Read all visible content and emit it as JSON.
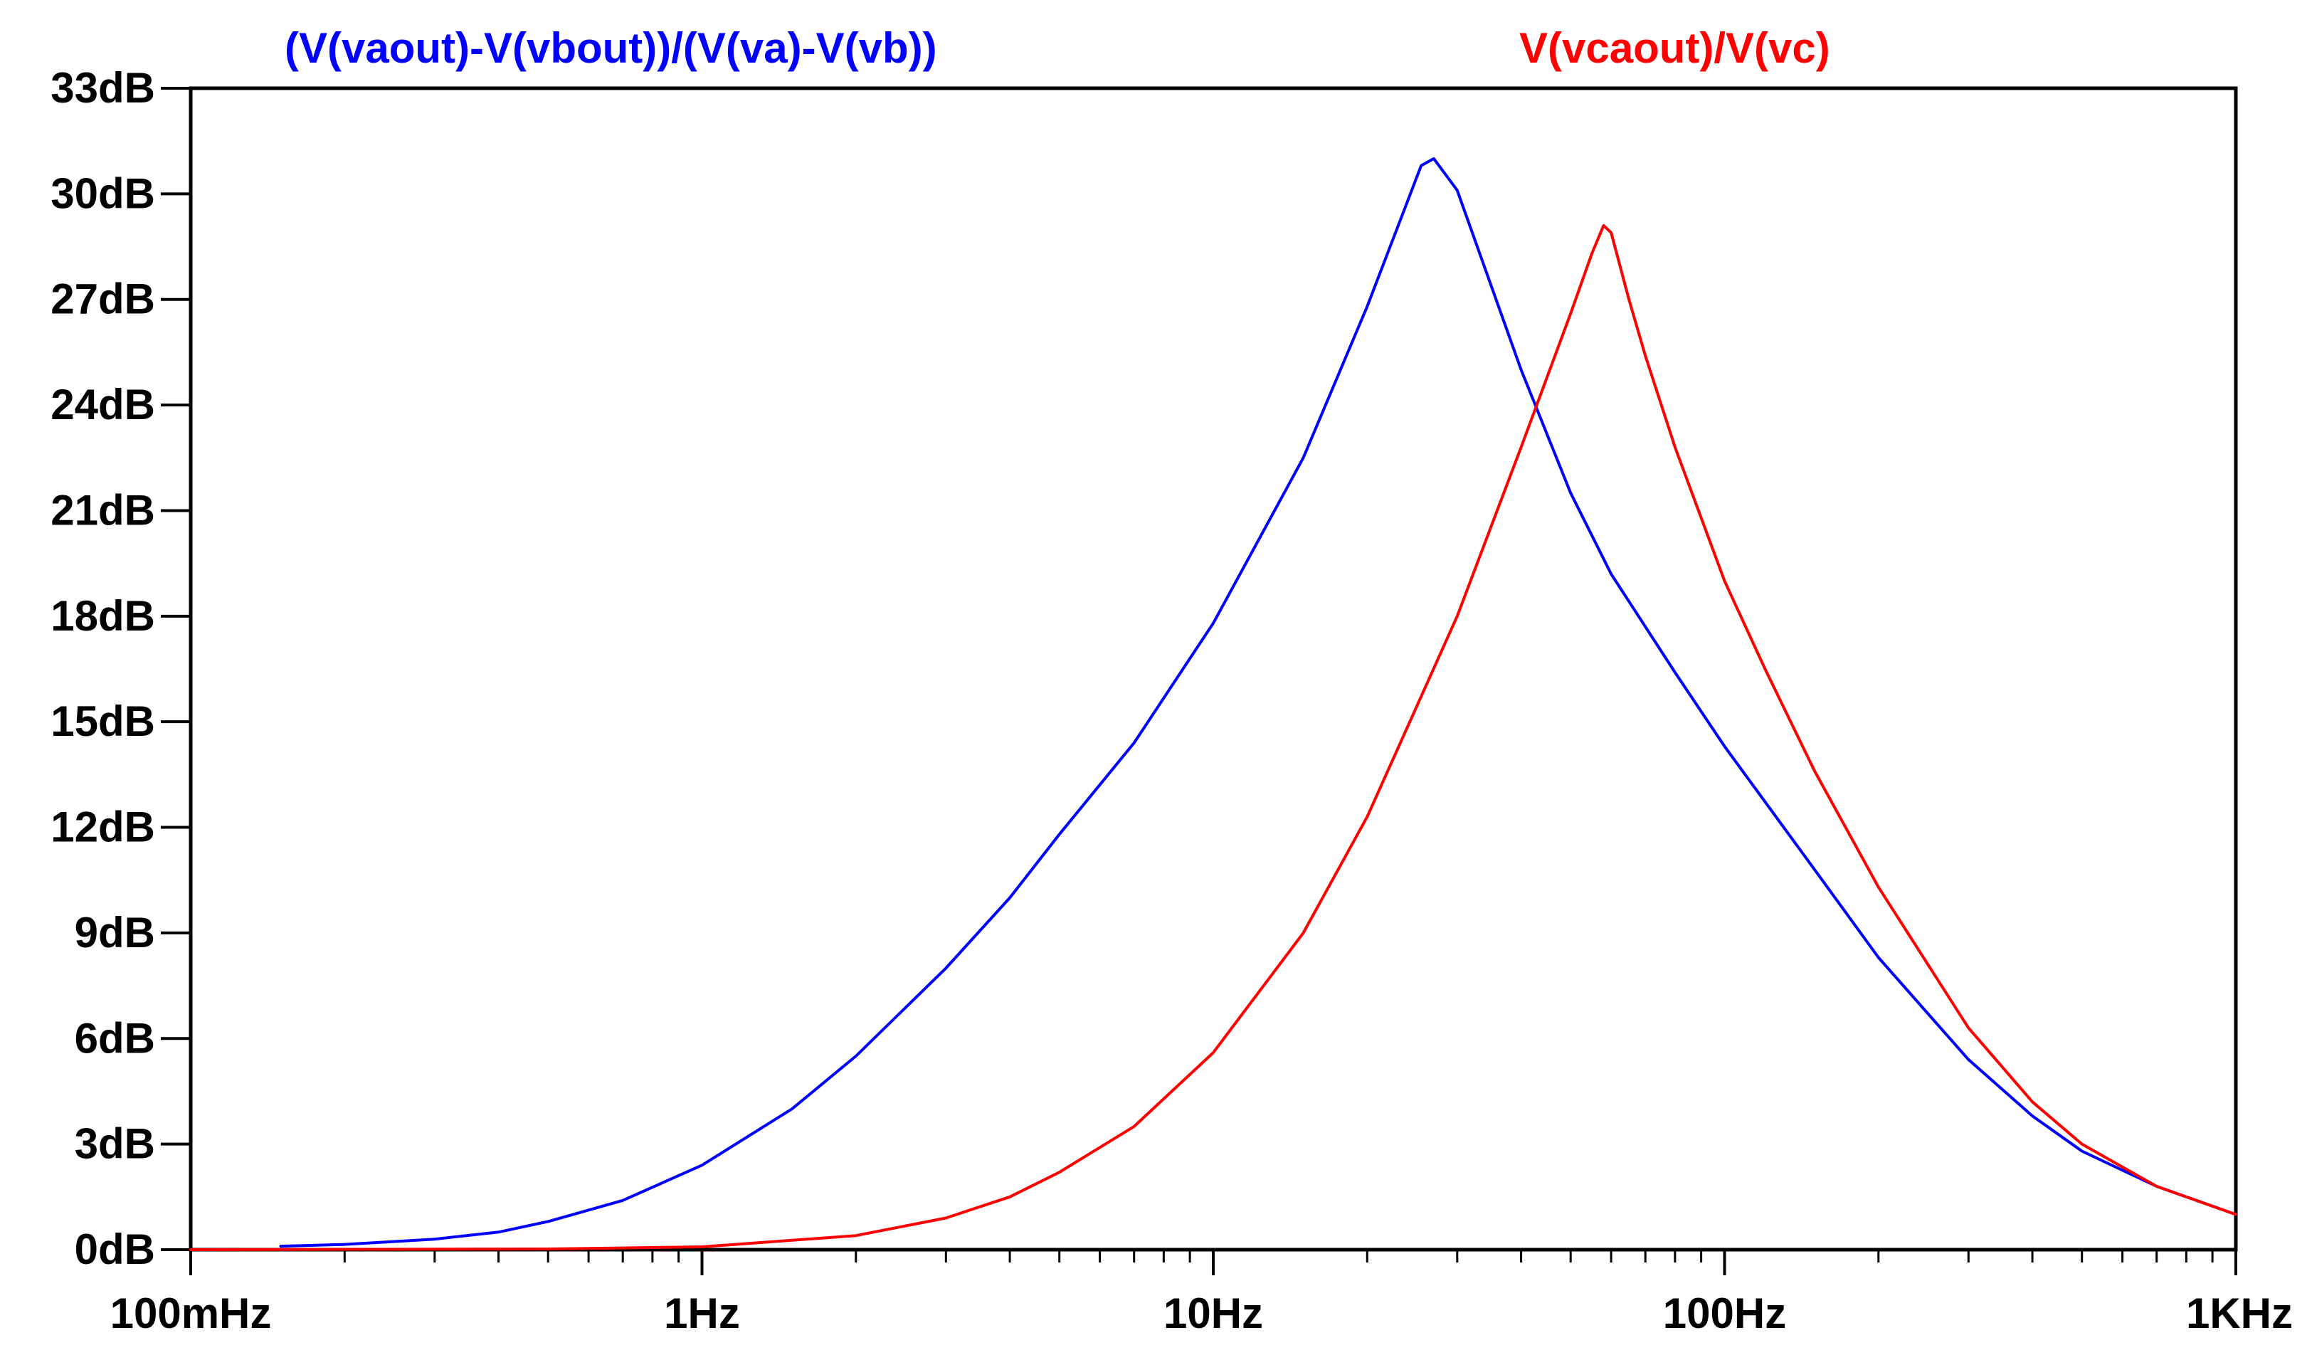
{
  "chart_data": {
    "type": "line",
    "title": "",
    "xlabel": "",
    "ylabel": "",
    "x_scale": "log",
    "xlim": [
      0.1,
      1000
    ],
    "ylim": [
      0,
      33
    ],
    "grid": false,
    "legend_position": "top",
    "x_ticks": [
      {
        "value": 0.1,
        "label": "100mHz"
      },
      {
        "value": 1,
        "label": "1Hz"
      },
      {
        "value": 10,
        "label": "10Hz"
      },
      {
        "value": 100,
        "label": "100Hz"
      },
      {
        "value": 1000,
        "label": "1KHz"
      }
    ],
    "y_ticks": [
      {
        "value": 0,
        "label": "0dB"
      },
      {
        "value": 3,
        "label": "3dB"
      },
      {
        "value": 6,
        "label": "6dB"
      },
      {
        "value": 9,
        "label": "9dB"
      },
      {
        "value": 12,
        "label": "12dB"
      },
      {
        "value": 15,
        "label": "15dB"
      },
      {
        "value": 18,
        "label": "18dB"
      },
      {
        "value": 21,
        "label": "21dB"
      },
      {
        "value": 24,
        "label": "24dB"
      },
      {
        "value": 27,
        "label": "27dB"
      },
      {
        "value": 30,
        "label": "30dB"
      },
      {
        "value": 33,
        "label": "33dB"
      }
    ],
    "series": [
      {
        "name": "(V(vaout)-V(vbout))/(V(va)-V(vb))",
        "color": "#0000ff",
        "x": [
          0.15,
          0.2,
          0.3,
          0.4,
          0.5,
          0.7,
          1,
          1.5,
          2,
          3,
          4,
          5,
          7,
          10,
          15,
          20,
          24,
          25.5,
          27,
          30,
          40,
          50,
          60,
          80,
          100,
          150,
          200,
          300,
          400,
          500,
          700,
          1000
        ],
        "y": [
          0.1,
          0.15,
          0.3,
          0.5,
          0.8,
          1.4,
          2.4,
          4.0,
          5.5,
          8.0,
          10.0,
          11.8,
          14.4,
          17.8,
          22.5,
          26.8,
          29.8,
          30.8,
          31.0,
          30.1,
          25.0,
          21.5,
          19.2,
          16.4,
          14.3,
          10.8,
          8.3,
          5.4,
          3.8,
          2.8,
          1.8,
          1.0
        ]
      },
      {
        "name": "V(vcaout)/V(vc)",
        "color": "#ff0000",
        "x": [
          0.1,
          0.5,
          1,
          2,
          3,
          4,
          5,
          7,
          10,
          15,
          20,
          30,
          40,
          50,
          55,
          58,
          60,
          65,
          70,
          80,
          100,
          120,
          150,
          200,
          300,
          400,
          500,
          700,
          1000
        ],
        "y": [
          0.0,
          0.02,
          0.08,
          0.4,
          0.9,
          1.5,
          2.2,
          3.5,
          5.6,
          9.0,
          12.3,
          18.0,
          22.8,
          26.6,
          28.3,
          29.1,
          28.9,
          27.0,
          25.4,
          22.8,
          19.0,
          16.5,
          13.6,
          10.3,
          6.3,
          4.2,
          3.0,
          1.8,
          1.0
        ]
      }
    ]
  }
}
